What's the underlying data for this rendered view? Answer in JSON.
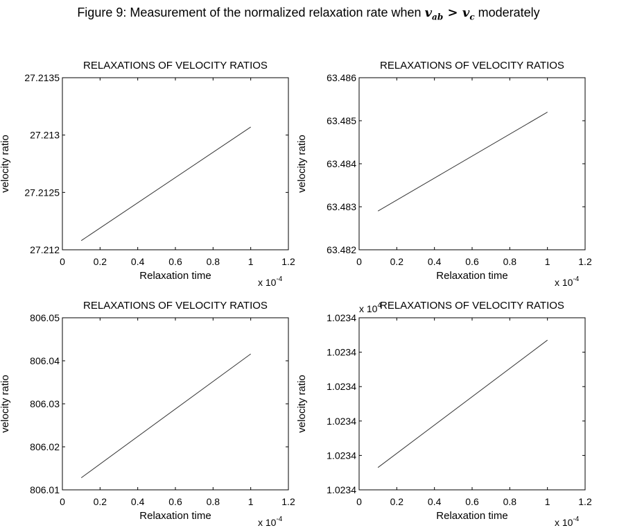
{
  "figure": {
    "title_prefix": "Figure 9: Measurement of the normalized relaxation rate when ",
    "title_lhs": "v",
    "title_lhs_sub": "ab",
    "title_op": " > ",
    "title_rhs": "v",
    "title_rhs_sub": "c",
    "title_suffix": " moderately"
  },
  "chart_data": [
    {
      "type": "line",
      "title": "RELAXATIONS OF VELOCITY RATIOS",
      "xlabel": "Relaxation time",
      "ylabel": "velocity ratio",
      "x_multiplier": "x 10",
      "x_multiplier_exp": "-4",
      "y_multiplier": "",
      "y_multiplier_exp": "",
      "xlim": [
        0,
        1.2
      ],
      "ylim": [
        27.212,
        27.2135
      ],
      "xticks": [
        0,
        0.2,
        0.4,
        0.6,
        0.8,
        1,
        1.2
      ],
      "xtick_labels": [
        "0",
        "0.2",
        "0.4",
        "0.6",
        "0.8",
        "1",
        "1.2"
      ],
      "yticks": [
        27.212,
        27.2125,
        27.213,
        27.2135
      ],
      "ytick_labels": [
        "27.212",
        "27.2125",
        "27.213",
        "27.2135"
      ],
      "grid": false,
      "series": [
        {
          "x": [
            0.1,
            1.0
          ],
          "y": [
            27.21208,
            27.21307
          ]
        }
      ]
    },
    {
      "type": "line",
      "title": "RELAXATIONS OF VELOCITY RATIOS",
      "xlabel": "Relaxation time",
      "ylabel": "velocity ratio",
      "x_multiplier": "x 10",
      "x_multiplier_exp": "-4",
      "y_multiplier": "",
      "y_multiplier_exp": "",
      "xlim": [
        0,
        1.2
      ],
      "ylim": [
        63.482,
        63.486
      ],
      "xticks": [
        0,
        0.2,
        0.4,
        0.6,
        0.8,
        1,
        1.2
      ],
      "xtick_labels": [
        "0",
        "0.2",
        "0.4",
        "0.6",
        "0.8",
        "1",
        "1.2"
      ],
      "yticks": [
        63.482,
        63.483,
        63.484,
        63.485,
        63.486
      ],
      "ytick_labels": [
        "63.482",
        "63.483",
        "63.484",
        "63.485",
        "63.486"
      ],
      "grid": false,
      "series": [
        {
          "x": [
            0.1,
            1.0
          ],
          "y": [
            63.4829,
            63.4852
          ]
        }
      ]
    },
    {
      "type": "line",
      "title": "RELAXATIONS OF VELOCITY RATIOS",
      "xlabel": "Relaxation time",
      "ylabel": "velocity ratio",
      "x_multiplier": "x 10",
      "x_multiplier_exp": "-4",
      "y_multiplier": "",
      "y_multiplier_exp": "",
      "xlim": [
        0,
        1.2
      ],
      "ylim": [
        806.01,
        806.05
      ],
      "xticks": [
        0,
        0.2,
        0.4,
        0.6,
        0.8,
        1,
        1.2
      ],
      "xtick_labels": [
        "0",
        "0.2",
        "0.4",
        "0.6",
        "0.8",
        "1",
        "1.2"
      ],
      "yticks": [
        806.01,
        806.02,
        806.03,
        806.04,
        806.05
      ],
      "ytick_labels": [
        "806.01",
        "806.02",
        "806.03",
        "806.04",
        "806.05"
      ],
      "grid": false,
      "series": [
        {
          "x": [
            0.1,
            1.0
          ],
          "y": [
            806.0128,
            806.0416
          ]
        }
      ]
    },
    {
      "type": "line",
      "title": "RELAXATIONS OF VELOCITY RATIOS",
      "xlabel": "Relaxation time",
      "ylabel": "velocity ratio",
      "x_multiplier": "x 10",
      "x_multiplier_exp": "-4",
      "y_multiplier": "x 10",
      "y_multiplier_exp": "4",
      "xlim": [
        0,
        1.2
      ],
      "ylim": [
        0,
        5
      ],
      "xticks": [
        0,
        0.2,
        0.4,
        0.6,
        0.8,
        1,
        1.2
      ],
      "xtick_labels": [
        "0",
        "0.2",
        "0.4",
        "0.6",
        "0.8",
        "1",
        "1.2"
      ],
      "yticks": [
        0,
        1,
        2,
        3,
        4,
        5
      ],
      "ytick_labels": [
        "1.0234",
        "1.0234",
        "1.0234",
        "1.0234",
        "1.0234",
        "1.0234"
      ],
      "grid": false,
      "series": [
        {
          "x": [
            0.1,
            1.0
          ],
          "y": [
            0.65,
            4.35
          ]
        }
      ]
    }
  ]
}
